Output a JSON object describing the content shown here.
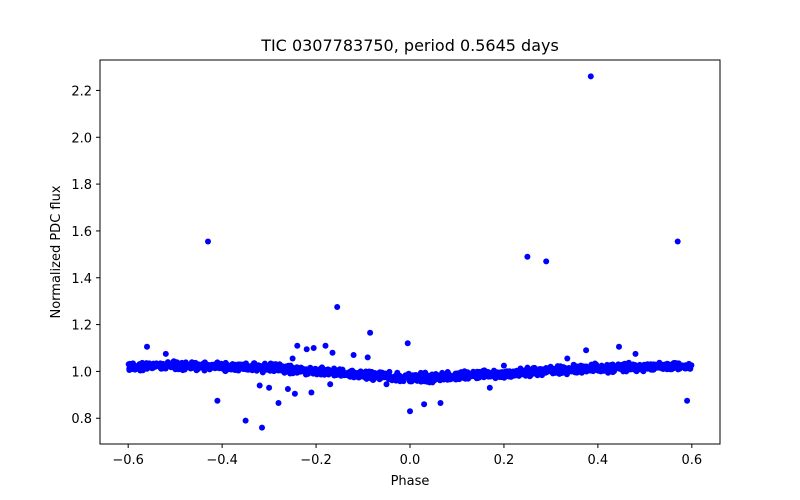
{
  "chart_data": {
    "type": "scatter",
    "title": "TIC 0307783750, period 0.5645 days",
    "xlabel": "Phase",
    "ylabel": "Normalized PDC flux",
    "xlim": [
      -0.66,
      0.66
    ],
    "ylim": [
      0.69,
      2.33
    ],
    "xticks": [
      -0.6,
      -0.4,
      -0.2,
      0.0,
      0.2,
      0.4,
      0.6
    ],
    "xtick_labels": [
      "−0.6",
      "−0.4",
      "−0.2",
      "0.0",
      "0.2",
      "0.4",
      "0.6"
    ],
    "yticks": [
      0.8,
      1.0,
      1.2,
      1.4,
      1.6,
      1.8,
      2.0,
      2.2
    ],
    "ytick_labels": [
      "0.8",
      "1.0",
      "1.2",
      "1.4",
      "1.6",
      "1.8",
      "2.0",
      "2.2"
    ],
    "series_color": "#0000ff",
    "band": {
      "description": "dense phase-folded light curve",
      "x_range": [
        -0.6,
        0.6
      ],
      "trend": [
        {
          "x": -0.6,
          "y": 1.02
        },
        {
          "x": -0.5,
          "y": 1.025
        },
        {
          "x": -0.4,
          "y": 1.02
        },
        {
          "x": -0.3,
          "y": 1.015
        },
        {
          "x": -0.2,
          "y": 1.0
        },
        {
          "x": -0.1,
          "y": 0.985
        },
        {
          "x": 0.0,
          "y": 0.97
        },
        {
          "x": 0.1,
          "y": 0.98
        },
        {
          "x": 0.2,
          "y": 0.99
        },
        {
          "x": 0.3,
          "y": 1.005
        },
        {
          "x": 0.4,
          "y": 1.015
        },
        {
          "x": 0.5,
          "y": 1.02
        },
        {
          "x": 0.6,
          "y": 1.02
        }
      ],
      "half_width": 0.025
    },
    "outliers": [
      {
        "x": 0.385,
        "y": 2.26
      },
      {
        "x": -0.43,
        "y": 1.555
      },
      {
        "x": 0.57,
        "y": 1.555
      },
      {
        "x": 0.25,
        "y": 1.49
      },
      {
        "x": 0.29,
        "y": 1.47
      },
      {
        "x": -0.155,
        "y": 1.275
      },
      {
        "x": -0.085,
        "y": 1.165
      },
      {
        "x": -0.005,
        "y": 1.12
      },
      {
        "x": -0.18,
        "y": 1.11
      },
      {
        "x": -0.205,
        "y": 1.1
      },
      {
        "x": -0.22,
        "y": 1.095
      },
      {
        "x": -0.165,
        "y": 1.08
      },
      {
        "x": -0.56,
        "y": 1.105
      },
      {
        "x": -0.52,
        "y": 1.075
      },
      {
        "x": -0.24,
        "y": 1.11
      },
      {
        "x": -0.25,
        "y": 1.055
      },
      {
        "x": -0.12,
        "y": 1.07
      },
      {
        "x": -0.09,
        "y": 1.06
      },
      {
        "x": 0.445,
        "y": 1.105
      },
      {
        "x": 0.375,
        "y": 1.09
      },
      {
        "x": 0.48,
        "y": 1.075
      },
      {
        "x": 0.335,
        "y": 1.055
      },
      {
        "x": 0.2,
        "y": 1.025
      },
      {
        "x": -0.41,
        "y": 0.875
      },
      {
        "x": -0.35,
        "y": 0.79
      },
      {
        "x": -0.315,
        "y": 0.76
      },
      {
        "x": -0.32,
        "y": 0.94
      },
      {
        "x": -0.3,
        "y": 0.93
      },
      {
        "x": -0.28,
        "y": 0.865
      },
      {
        "x": -0.26,
        "y": 0.925
      },
      {
        "x": -0.245,
        "y": 0.905
      },
      {
        "x": -0.21,
        "y": 0.91
      },
      {
        "x": -0.17,
        "y": 0.945
      },
      {
        "x": -0.05,
        "y": 0.945
      },
      {
        "x": 0.0,
        "y": 0.83
      },
      {
        "x": 0.03,
        "y": 0.86
      },
      {
        "x": 0.065,
        "y": 0.865
      },
      {
        "x": 0.17,
        "y": 0.93
      },
      {
        "x": 0.59,
        "y": 0.875
      }
    ]
  }
}
